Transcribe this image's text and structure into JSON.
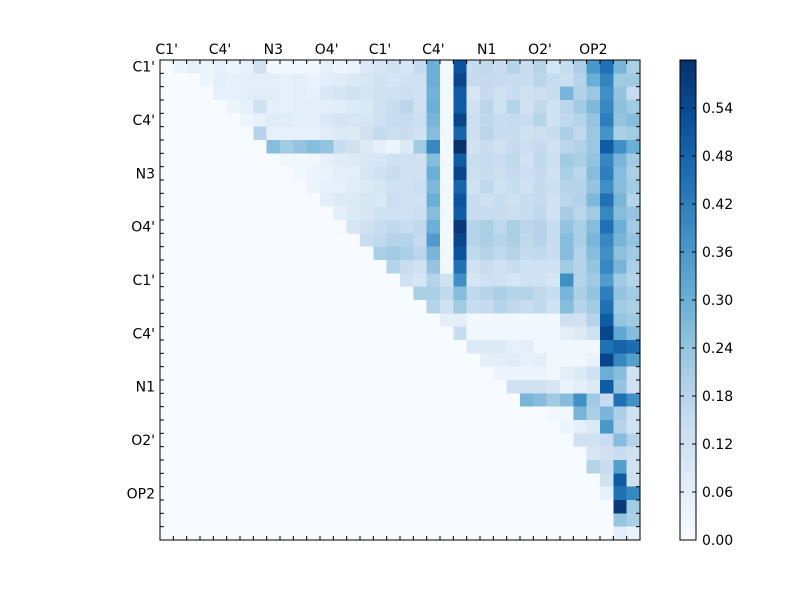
{
  "chart_data": {
    "type": "heatmap",
    "title": "",
    "xlabel": "",
    "ylabel": "",
    "x_tick_labels": [
      "C1'",
      "C4'",
      "N3",
      "O4'",
      "C1'",
      "C4'",
      "N1",
      "O2'",
      "OP2"
    ],
    "y_tick_labels": [
      "C1'",
      "C4'",
      "N3",
      "O4'",
      "C1'",
      "C4'",
      "N1",
      "O2'",
      "OP2"
    ],
    "colormap": "Blues",
    "grid": false,
    "colorbar": {
      "range": [
        0.0,
        0.6
      ],
      "ticks": [
        "0.00",
        "0.06",
        "0.12",
        "0.18",
        "0.24",
        "0.30",
        "0.36",
        "0.42",
        "0.48",
        "0.54"
      ]
    },
    "matrix": [
      [
        0,
        0.03,
        0.05,
        0.03,
        0.05,
        0.03,
        0.05,
        0.12,
        0.02,
        0.02,
        0.02,
        0.02,
        0.05,
        0.03,
        0.04,
        0.08,
        0.1,
        0.12,
        0.1,
        0.15,
        0.3,
        0.02,
        0.52,
        0.15,
        0.16,
        0.14,
        0.18,
        0.14,
        0.18,
        0.11,
        0.14,
        0.2,
        0.36,
        0.45,
        0.28,
        0.2
      ],
      [
        0,
        0,
        0,
        0.03,
        0.06,
        0.05,
        0.06,
        0.06,
        0.06,
        0.05,
        0.06,
        0.04,
        0.06,
        0.07,
        0.09,
        0.1,
        0.12,
        0.1,
        0.12,
        0.12,
        0.3,
        0.02,
        0.55,
        0.15,
        0.15,
        0.15,
        0.14,
        0.14,
        0.17,
        0.15,
        0.13,
        0.18,
        0.3,
        0.41,
        0.22,
        0.22
      ],
      [
        0,
        0,
        0,
        0,
        0.05,
        0.05,
        0.06,
        0.07,
        0.07,
        0.05,
        0.06,
        0.05,
        0.09,
        0.11,
        0.12,
        0.11,
        0.12,
        0.12,
        0.13,
        0.12,
        0.29,
        0.02,
        0.5,
        0.1,
        0.15,
        0.12,
        0.14,
        0.12,
        0.13,
        0.14,
        0.28,
        0.19,
        0.23,
        0.38,
        0.24,
        0.15
      ],
      [
        0,
        0,
        0,
        0,
        0,
        0.03,
        0.05,
        0.12,
        0.06,
        0.05,
        0.06,
        0.06,
        0.06,
        0.07,
        0.08,
        0.09,
        0.12,
        0.14,
        0.17,
        0.12,
        0.3,
        0.02,
        0.5,
        0.12,
        0.17,
        0.12,
        0.18,
        0.12,
        0.16,
        0.12,
        0.17,
        0.22,
        0.27,
        0.4,
        0.25,
        0.22
      ],
      [
        0,
        0,
        0,
        0,
        0,
        0,
        0.03,
        0.05,
        0.07,
        0.07,
        0.06,
        0.06,
        0.09,
        0.11,
        0.1,
        0.1,
        0.12,
        0.15,
        0.15,
        0.13,
        0.28,
        0.02,
        0.55,
        0.13,
        0.16,
        0.14,
        0.15,
        0.14,
        0.18,
        0.12,
        0.16,
        0.18,
        0.24,
        0.42,
        0.24,
        0.26
      ],
      [
        0,
        0,
        0,
        0,
        0,
        0,
        0,
        0.18,
        0.05,
        0.05,
        0.05,
        0.05,
        0.07,
        0.08,
        0.08,
        0.12,
        0.15,
        0.13,
        0.14,
        0.12,
        0.26,
        0.02,
        0.48,
        0.13,
        0.17,
        0.14,
        0.14,
        0.12,
        0.13,
        0.14,
        0.2,
        0.16,
        0.23,
        0.37,
        0.2,
        0.22
      ],
      [
        0,
        0,
        0,
        0,
        0,
        0,
        0,
        0,
        0.26,
        0.22,
        0.24,
        0.26,
        0.24,
        0.14,
        0.12,
        0.08,
        0.06,
        0.03,
        0.08,
        0.22,
        0.4,
        0.02,
        0.6,
        0.12,
        0.14,
        0.12,
        0.15,
        0.13,
        0.15,
        0.12,
        0.17,
        0.19,
        0.23,
        0.5,
        0.38,
        0.3
      ],
      [
        0,
        0,
        0,
        0,
        0,
        0,
        0,
        0,
        0,
        0.02,
        0.02,
        0.02,
        0.05,
        0.07,
        0.08,
        0.09,
        0.1,
        0.12,
        0.12,
        0.12,
        0.26,
        0.02,
        0.5,
        0.14,
        0.15,
        0.14,
        0.16,
        0.12,
        0.16,
        0.13,
        0.22,
        0.2,
        0.24,
        0.4,
        0.28,
        0.22
      ],
      [
        0,
        0,
        0,
        0,
        0,
        0,
        0,
        0,
        0,
        0,
        0.02,
        0.03,
        0.04,
        0.06,
        0.06,
        0.1,
        0.12,
        0.14,
        0.12,
        0.12,
        0.3,
        0.02,
        0.55,
        0.13,
        0.14,
        0.13,
        0.15,
        0.13,
        0.15,
        0.12,
        0.2,
        0.17,
        0.26,
        0.42,
        0.26,
        0.2
      ],
      [
        0,
        0,
        0,
        0,
        0,
        0,
        0,
        0,
        0,
        0,
        0,
        0.03,
        0.05,
        0.05,
        0.07,
        0.08,
        0.1,
        0.12,
        0.12,
        0.13,
        0.27,
        0.02,
        0.48,
        0.12,
        0.16,
        0.12,
        0.14,
        0.12,
        0.15,
        0.13,
        0.18,
        0.18,
        0.24,
        0.38,
        0.26,
        0.22
      ],
      [
        0,
        0,
        0,
        0,
        0,
        0,
        0,
        0,
        0,
        0,
        0,
        0,
        0.06,
        0.08,
        0.08,
        0.1,
        0.09,
        0.13,
        0.12,
        0.12,
        0.3,
        0.02,
        0.52,
        0.14,
        0.12,
        0.14,
        0.12,
        0.14,
        0.15,
        0.12,
        0.17,
        0.19,
        0.27,
        0.45,
        0.28,
        0.18
      ],
      [
        0,
        0,
        0,
        0,
        0,
        0,
        0,
        0,
        0,
        0,
        0,
        0,
        0,
        0.06,
        0.08,
        0.1,
        0.12,
        0.12,
        0.12,
        0.13,
        0.26,
        0.02,
        0.5,
        0.14,
        0.14,
        0.14,
        0.13,
        0.14,
        0.16,
        0.12,
        0.21,
        0.17,
        0.22,
        0.4,
        0.26,
        0.24
      ],
      [
        0,
        0,
        0,
        0,
        0,
        0,
        0,
        0,
        0,
        0,
        0,
        0,
        0,
        0,
        0.1,
        0.12,
        0.14,
        0.16,
        0.14,
        0.16,
        0.3,
        0.02,
        0.58,
        0.18,
        0.2,
        0.16,
        0.2,
        0.17,
        0.18,
        0.14,
        0.24,
        0.2,
        0.26,
        0.45,
        0.3,
        0.22
      ],
      [
        0,
        0,
        0,
        0,
        0,
        0,
        0,
        0,
        0,
        0,
        0,
        0,
        0,
        0,
        0,
        0.14,
        0.16,
        0.18,
        0.18,
        0.15,
        0.35,
        0.02,
        0.55,
        0.18,
        0.2,
        0.18,
        0.2,
        0.16,
        0.18,
        0.14,
        0.26,
        0.2,
        0.28,
        0.4,
        0.28,
        0.24
      ],
      [
        0,
        0,
        0,
        0,
        0,
        0,
        0,
        0,
        0,
        0,
        0,
        0,
        0,
        0,
        0,
        0,
        0.2,
        0.22,
        0.2,
        0.17,
        0.28,
        0.02,
        0.52,
        0.16,
        0.18,
        0.16,
        0.18,
        0.15,
        0.16,
        0.14,
        0.26,
        0.18,
        0.26,
        0.38,
        0.25,
        0.22
      ],
      [
        0,
        0,
        0,
        0,
        0,
        0,
        0,
        0,
        0,
        0,
        0,
        0,
        0,
        0,
        0,
        0,
        0,
        0.18,
        0.14,
        0.12,
        0.24,
        0.02,
        0.45,
        0.12,
        0.14,
        0.12,
        0.14,
        0.12,
        0.12,
        0.12,
        0.22,
        0.18,
        0.24,
        0.4,
        0.28,
        0.2
      ],
      [
        0,
        0,
        0,
        0,
        0,
        0,
        0,
        0,
        0,
        0,
        0,
        0,
        0,
        0,
        0,
        0,
        0,
        0,
        0.12,
        0.1,
        0.18,
        0.12,
        0.38,
        0.1,
        0.12,
        0.12,
        0.1,
        0.12,
        0.12,
        0.1,
        0.38,
        0.18,
        0.22,
        0.35,
        0.22,
        0.18
      ],
      [
        0,
        0,
        0,
        0,
        0,
        0,
        0,
        0,
        0,
        0,
        0,
        0,
        0,
        0,
        0,
        0,
        0,
        0,
        0,
        0.2,
        0.2,
        0.16,
        0.26,
        0.16,
        0.18,
        0.2,
        0.18,
        0.18,
        0.16,
        0.14,
        0.28,
        0.2,
        0.24,
        0.42,
        0.24,
        0.22
      ],
      [
        0,
        0,
        0,
        0,
        0,
        0,
        0,
        0,
        0,
        0,
        0,
        0,
        0,
        0,
        0,
        0,
        0,
        0,
        0,
        0,
        0.18,
        0.12,
        0.22,
        0.14,
        0.15,
        0.18,
        0.16,
        0.14,
        0.16,
        0.12,
        0.26,
        0.18,
        0.22,
        0.45,
        0.22,
        0.2
      ],
      [
        0,
        0,
        0,
        0,
        0,
        0,
        0,
        0,
        0,
        0,
        0,
        0,
        0,
        0,
        0,
        0,
        0,
        0,
        0,
        0,
        0,
        0.06,
        0.06,
        0.02,
        0.02,
        0.02,
        0.02,
        0.02,
        0.02,
        0.02,
        0.12,
        0.12,
        0.18,
        0.5,
        0.24,
        0.22
      ],
      [
        0,
        0,
        0,
        0,
        0,
        0,
        0,
        0,
        0,
        0,
        0,
        0,
        0,
        0,
        0,
        0,
        0,
        0,
        0,
        0,
        0,
        0,
        0.14,
        0.02,
        0.02,
        0.02,
        0.02,
        0.02,
        0.02,
        0.02,
        0.06,
        0.08,
        0.12,
        0.55,
        0.32,
        0.26
      ],
      [
        0,
        0,
        0,
        0,
        0,
        0,
        0,
        0,
        0,
        0,
        0,
        0,
        0,
        0,
        0,
        0,
        0,
        0,
        0,
        0,
        0,
        0,
        0,
        0.08,
        0.08,
        0.08,
        0.05,
        0.06,
        0.02,
        0.02,
        0.02,
        0.02,
        0.02,
        0.45,
        0.48,
        0.46
      ],
      [
        0,
        0,
        0,
        0,
        0,
        0,
        0,
        0,
        0,
        0,
        0,
        0,
        0,
        0,
        0,
        0,
        0,
        0,
        0,
        0,
        0,
        0,
        0,
        0,
        0.05,
        0.06,
        0.07,
        0.05,
        0.06,
        0.02,
        0.02,
        0.02,
        0.04,
        0.55,
        0.4,
        0.34
      ],
      [
        0,
        0,
        0,
        0,
        0,
        0,
        0,
        0,
        0,
        0,
        0,
        0,
        0,
        0,
        0,
        0,
        0,
        0,
        0,
        0,
        0,
        0,
        0,
        0,
        0,
        0.03,
        0.03,
        0.03,
        0.03,
        0.02,
        0.06,
        0.08,
        0.12,
        0.3,
        0.26,
        0.12
      ],
      [
        0,
        0,
        0,
        0,
        0,
        0,
        0,
        0,
        0,
        0,
        0,
        0,
        0,
        0,
        0,
        0,
        0,
        0,
        0,
        0,
        0,
        0,
        0,
        0,
        0,
        0,
        0.12,
        0.12,
        0.12,
        0.1,
        0.04,
        0.06,
        0.08,
        0.5,
        0.24,
        0.12
      ],
      [
        0,
        0,
        0,
        0,
        0,
        0,
        0,
        0,
        0,
        0,
        0,
        0,
        0,
        0,
        0,
        0,
        0,
        0,
        0,
        0,
        0,
        0,
        0,
        0,
        0,
        0,
        0,
        0.28,
        0.26,
        0.22,
        0.26,
        0.38,
        0.22,
        0.15,
        0.45,
        0.38
      ],
      [
        0,
        0,
        0,
        0,
        0,
        0,
        0,
        0,
        0,
        0,
        0,
        0,
        0,
        0,
        0,
        0,
        0,
        0,
        0,
        0,
        0,
        0,
        0,
        0,
        0,
        0,
        0,
        0,
        0,
        0.02,
        0.02,
        0.28,
        0.2,
        0.28,
        0.2,
        0.12
      ],
      [
        0,
        0,
        0,
        0,
        0,
        0,
        0,
        0,
        0,
        0,
        0,
        0,
        0,
        0,
        0,
        0,
        0,
        0,
        0,
        0,
        0,
        0,
        0,
        0,
        0,
        0,
        0,
        0,
        0,
        0,
        0.03,
        0.06,
        0.08,
        0.36,
        0.18,
        0.12
      ],
      [
        0,
        0,
        0,
        0,
        0,
        0,
        0,
        0,
        0,
        0,
        0,
        0,
        0,
        0,
        0,
        0,
        0,
        0,
        0,
        0,
        0,
        0,
        0,
        0,
        0,
        0,
        0,
        0,
        0,
        0,
        0,
        0.12,
        0.12,
        0.14,
        0.26,
        0.18
      ],
      [
        0,
        0,
        0,
        0,
        0,
        0,
        0,
        0,
        0,
        0,
        0,
        0,
        0,
        0,
        0,
        0,
        0,
        0,
        0,
        0,
        0,
        0,
        0,
        0,
        0,
        0,
        0,
        0,
        0,
        0,
        0,
        0,
        0.1,
        0.12,
        0.14,
        0.12
      ],
      [
        0,
        0,
        0,
        0,
        0,
        0,
        0,
        0,
        0,
        0,
        0,
        0,
        0,
        0,
        0,
        0,
        0,
        0,
        0,
        0,
        0,
        0,
        0,
        0,
        0,
        0,
        0,
        0,
        0,
        0,
        0,
        0,
        0.18,
        0.14,
        0.34,
        0.12
      ],
      [
        0,
        0,
        0,
        0,
        0,
        0,
        0,
        0,
        0,
        0,
        0,
        0,
        0,
        0,
        0,
        0,
        0,
        0,
        0,
        0,
        0,
        0,
        0,
        0,
        0,
        0,
        0,
        0,
        0,
        0,
        0,
        0,
        0,
        0.12,
        0.5,
        0.12
      ],
      [
        0,
        0,
        0,
        0,
        0,
        0,
        0,
        0,
        0,
        0,
        0,
        0,
        0,
        0,
        0,
        0,
        0,
        0,
        0,
        0,
        0,
        0,
        0,
        0,
        0,
        0,
        0,
        0,
        0,
        0,
        0,
        0,
        0,
        0.05,
        0.45,
        0.4
      ],
      [
        0,
        0,
        0,
        0,
        0,
        0,
        0,
        0,
        0,
        0,
        0,
        0,
        0,
        0,
        0,
        0,
        0,
        0,
        0,
        0,
        0,
        0,
        0,
        0,
        0,
        0,
        0,
        0,
        0,
        0,
        0,
        0,
        0,
        0,
        0.58,
        0.22
      ],
      [
        0,
        0,
        0,
        0,
        0,
        0,
        0,
        0,
        0,
        0,
        0,
        0,
        0,
        0,
        0,
        0,
        0,
        0,
        0,
        0,
        0,
        0,
        0,
        0,
        0,
        0,
        0,
        0,
        0,
        0,
        0,
        0,
        0,
        0,
        0.24,
        0.2
      ],
      [
        0,
        0,
        0,
        0,
        0,
        0,
        0,
        0,
        0,
        0,
        0,
        0,
        0,
        0,
        0,
        0,
        0,
        0,
        0,
        0,
        0,
        0,
        0,
        0,
        0,
        0,
        0,
        0,
        0,
        0,
        0,
        0,
        0,
        0,
        0.06,
        0.04
      ]
    ]
  }
}
